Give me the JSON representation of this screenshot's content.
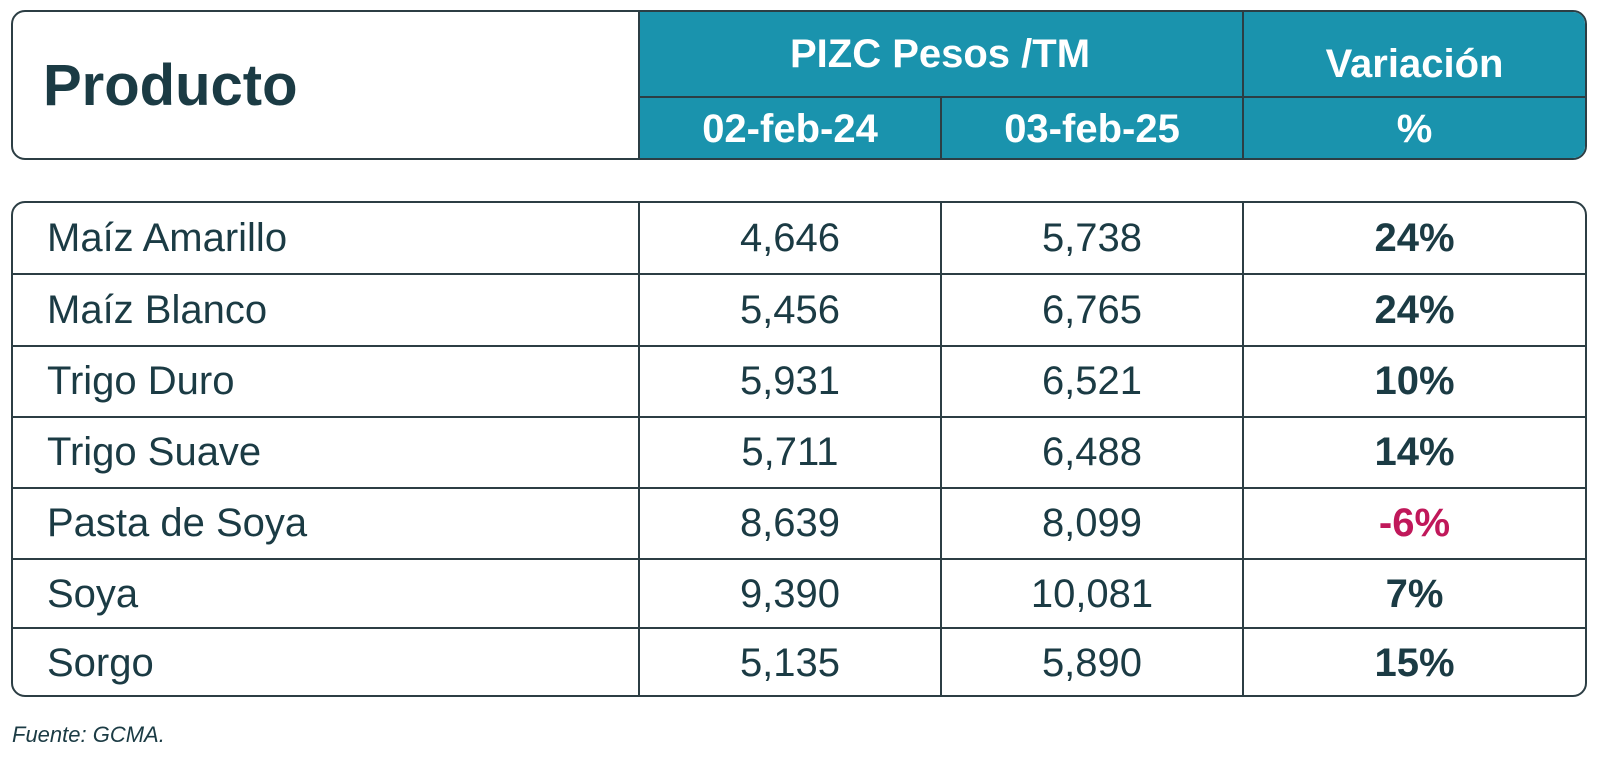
{
  "chart_data": {
    "type": "table",
    "header": {
      "product_label": "Producto",
      "group_label": "PIZC Pesos /TM",
      "date1": "02-feb-24",
      "date2": "03-feb-25",
      "variation_line1": "Variación",
      "variation_line2": "%"
    },
    "columns": [
      "Producto",
      "02-feb-24",
      "03-feb-25",
      "Variación %"
    ],
    "rows": [
      {
        "name": "Maíz Amarillo",
        "v1": "4,646",
        "v2": "5,738",
        "pct": "24%",
        "negative": false
      },
      {
        "name": "Maíz Blanco",
        "v1": "5,456",
        "v2": "6,765",
        "pct": "24%",
        "negative": false
      },
      {
        "name": "Trigo Duro",
        "v1": "5,931",
        "v2": "6,521",
        "pct": "10%",
        "negative": false
      },
      {
        "name": "Trigo Suave",
        "v1": "5,711",
        "v2": "6,488",
        "pct": "14%",
        "negative": false
      },
      {
        "name": "Pasta de Soya",
        "v1": "8,639",
        "v2": "8,099",
        "pct": "-6%",
        "negative": true
      },
      {
        "name": "Soya",
        "v1": "9,390",
        "v2": "10,081",
        "pct": "7%",
        "negative": false
      },
      {
        "name": "Sorgo",
        "v1": "5,135",
        "v2": "5,890",
        "pct": "15%",
        "negative": false
      }
    ],
    "source": "Fuente: GCMA."
  },
  "colors": {
    "header_teal": "#1a93ad",
    "text": "#1b3b44",
    "negative": "#c0185a",
    "border": "#2c3e44"
  }
}
